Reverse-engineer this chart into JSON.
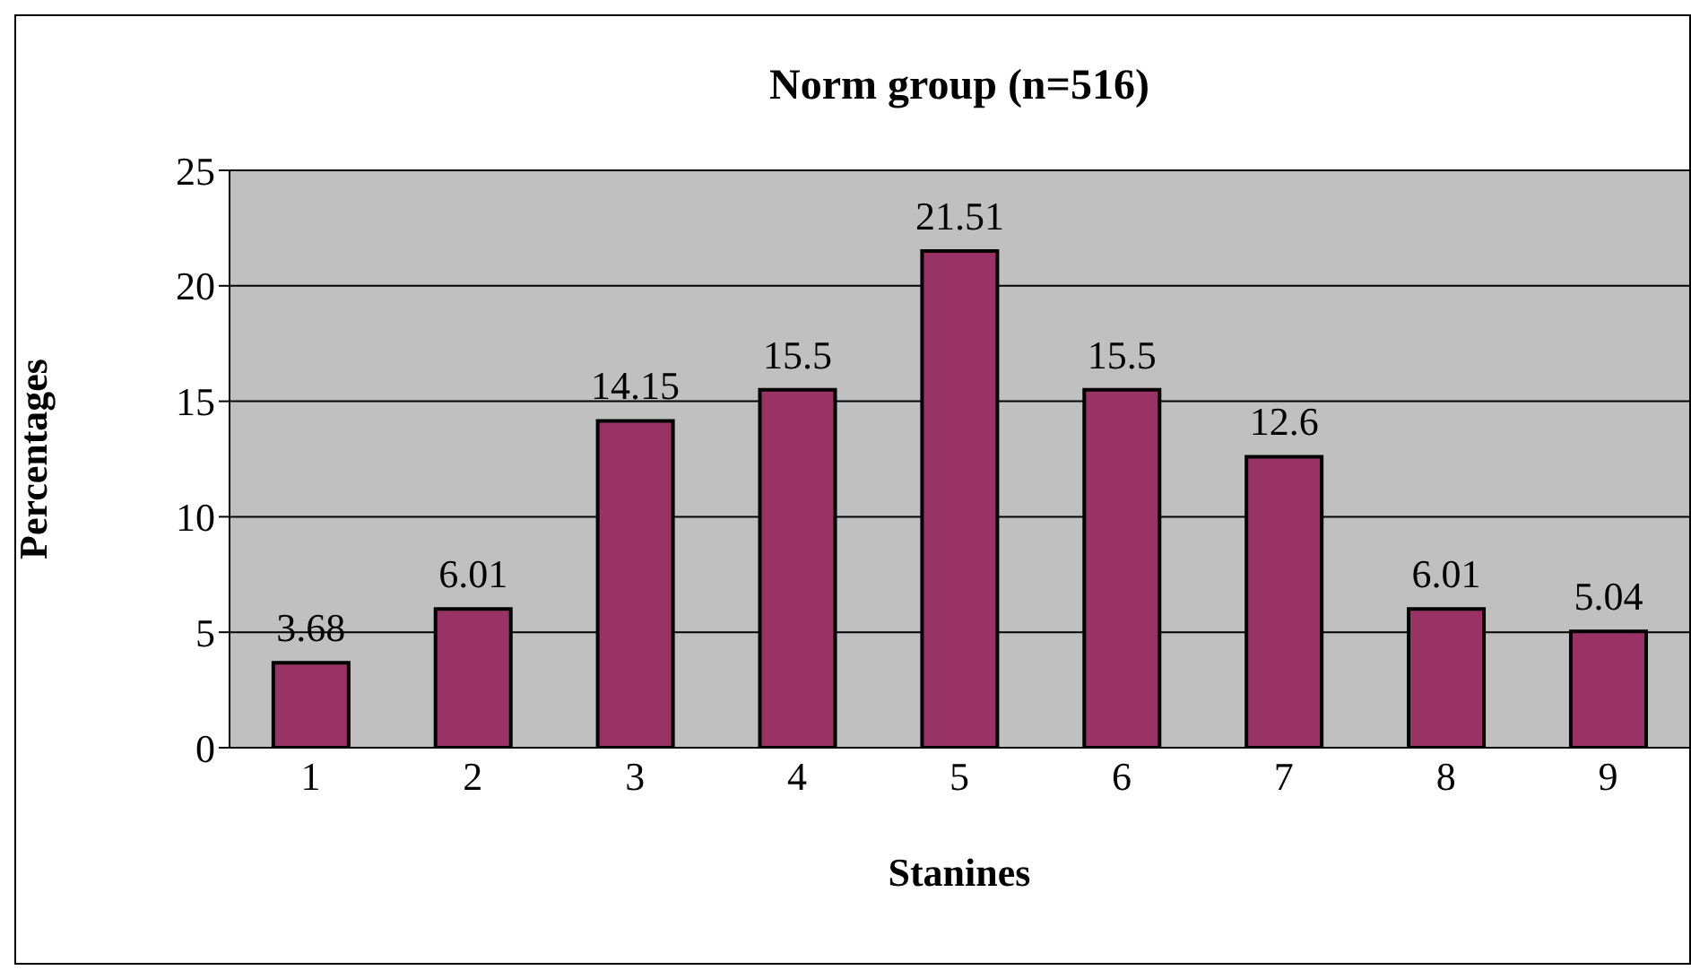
{
  "chart_data": {
    "type": "bar",
    "title": "Norm group (n=516)",
    "xlabel": "Stanines",
    "ylabel": "Percentages",
    "categories": [
      "1",
      "2",
      "3",
      "4",
      "5",
      "6",
      "7",
      "8",
      "9"
    ],
    "values": [
      3.68,
      6.01,
      14.15,
      15.5,
      21.51,
      15.5,
      12.6,
      6.01,
      5.04
    ],
    "color": "#993366",
    "ylim": [
      0,
      25
    ],
    "yticks": [
      0,
      5,
      10,
      15,
      20,
      25
    ],
    "grid": "y",
    "data_labels": true,
    "legend": false
  }
}
